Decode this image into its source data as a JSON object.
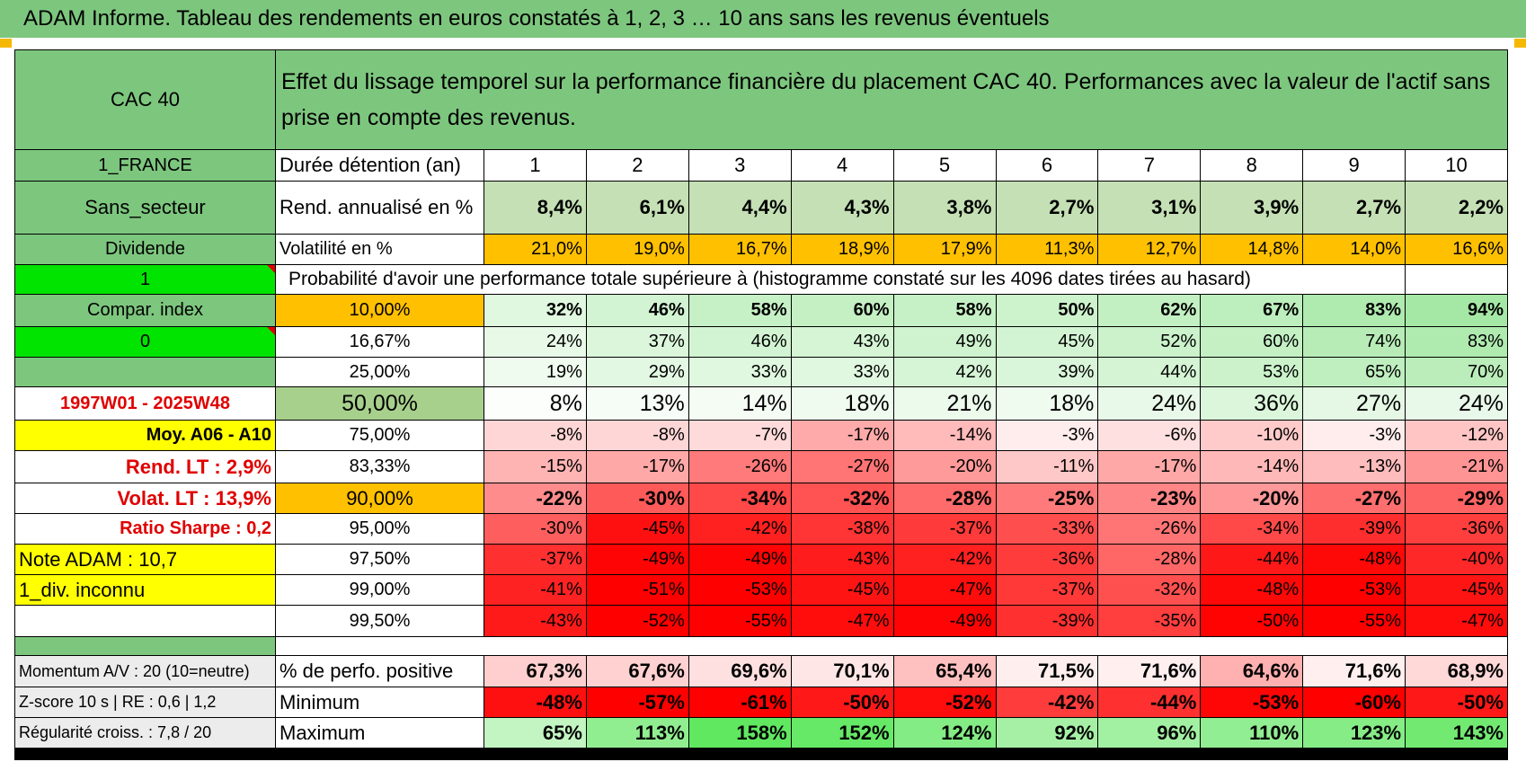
{
  "title": "ADAM Informe. Tableau des rendements en euros constatés à 1, 2, 3 … 10 ans sans les revenus éventuels",
  "left": {
    "header": "CAC 40",
    "country": "1_FRANCE",
    "sector": "Sans_secteur",
    "revenue": "Dividende",
    "param1": "1",
    "compar": "Compar. index",
    "param2": "0",
    "period": "1997W01 - 2025W48",
    "moy": "Moy. A06 - A10",
    "rend_lt": "Rend. LT :    2,9%",
    "volat_lt": "Volat. LT :    13,9%",
    "sharpe": "Ratio Sharpe :     0,2",
    "note": "Note ADAM : 10,7",
    "div": "1_div. inconnu",
    "momentum": "Momentum A/V : 20 (10=neutre)",
    "zscore": "Z-score 10 s | RE : 0,6  |  1,2",
    "regularite": "Régularité croiss. : 7,8 / 20"
  },
  "description": "Effet du lissage temporel sur la performance financière du placement CAC 40. Performances avec la valeur de l'actif sans prise en compte des revenus.",
  "row_labels": {
    "duree": "Durée détention (an)",
    "rend": "Rend. annualisé en %",
    "vol": "Volatilité en %",
    "prob": "Probabilité d'avoir une performance totale supérieure à (histogramme constaté sur les 4096 dates tirées au hasard)",
    "positive": "% de perfo. positive",
    "minimum": "Minimum",
    "maximum": "Maximum"
  },
  "years": [
    "1",
    "2",
    "3",
    "4",
    "5",
    "6",
    "7",
    "8",
    "9",
    "10"
  ],
  "rend": [
    "8,4%",
    "6,1%",
    "4,4%",
    "4,3%",
    "3,8%",
    "2,7%",
    "3,1%",
    "3,9%",
    "2,7%",
    "2,2%"
  ],
  "vol": [
    "21,0%",
    "19,0%",
    "16,7%",
    "18,9%",
    "17,9%",
    "11,3%",
    "12,7%",
    "14,8%",
    "14,0%",
    "16,6%"
  ],
  "quantiles": [
    {
      "label": "10,00%",
      "values": [
        "32%",
        "46%",
        "58%",
        "60%",
        "58%",
        "50%",
        "62%",
        "67%",
        "83%",
        "94%"
      ]
    },
    {
      "label": "16,67%",
      "values": [
        "24%",
        "37%",
        "46%",
        "43%",
        "49%",
        "45%",
        "52%",
        "60%",
        "74%",
        "83%"
      ]
    },
    {
      "label": "25,00%",
      "values": [
        "19%",
        "29%",
        "33%",
        "33%",
        "42%",
        "39%",
        "44%",
        "53%",
        "65%",
        "70%"
      ]
    },
    {
      "label": "50,00%",
      "values": [
        "8%",
        "13%",
        "14%",
        "18%",
        "21%",
        "18%",
        "24%",
        "36%",
        "27%",
        "24%"
      ]
    },
    {
      "label": "75,00%",
      "values": [
        "-8%",
        "-8%",
        "-7%",
        "-17%",
        "-14%",
        "-3%",
        "-6%",
        "-10%",
        "-3%",
        "-12%"
      ]
    },
    {
      "label": "83,33%",
      "values": [
        "-15%",
        "-17%",
        "-26%",
        "-27%",
        "-20%",
        "-11%",
        "-17%",
        "-14%",
        "-13%",
        "-21%"
      ]
    },
    {
      "label": "90,00%",
      "values": [
        "-22%",
        "-30%",
        "-34%",
        "-32%",
        "-28%",
        "-25%",
        "-23%",
        "-20%",
        "-27%",
        "-29%"
      ]
    },
    {
      "label": "95,00%",
      "values": [
        "-30%",
        "-45%",
        "-42%",
        "-38%",
        "-37%",
        "-33%",
        "-26%",
        "-34%",
        "-39%",
        "-36%"
      ]
    },
    {
      "label": "97,50%",
      "values": [
        "-37%",
        "-49%",
        "-49%",
        "-43%",
        "-42%",
        "-36%",
        "-28%",
        "-44%",
        "-48%",
        "-40%"
      ]
    },
    {
      "label": "99,00%",
      "values": [
        "-41%",
        "-51%",
        "-53%",
        "-45%",
        "-47%",
        "-37%",
        "-32%",
        "-48%",
        "-53%",
        "-45%"
      ]
    },
    {
      "label": "99,50%",
      "values": [
        "-43%",
        "-52%",
        "-55%",
        "-47%",
        "-49%",
        "-39%",
        "-35%",
        "-50%",
        "-55%",
        "-47%"
      ]
    }
  ],
  "positive": [
    "67,3%",
    "67,6%",
    "69,6%",
    "70,1%",
    "65,4%",
    "71,5%",
    "71,6%",
    "64,6%",
    "71,6%",
    "68,9%"
  ],
  "minimum": [
    "-48%",
    "-57%",
    "-61%",
    "-50%",
    "-52%",
    "-42%",
    "-44%",
    "-53%",
    "-60%",
    "-50%"
  ],
  "maximum": [
    "65%",
    "113%",
    "158%",
    "152%",
    "124%",
    "92%",
    "96%",
    "110%",
    "123%",
    "143%"
  ],
  "colors": {
    "header_green": "#7dc67e",
    "light_green": "#a8d08d",
    "bright_green": "#00e400",
    "yellow": "#ffff00",
    "orange": "#ffc000",
    "red_text": "#e00000"
  }
}
